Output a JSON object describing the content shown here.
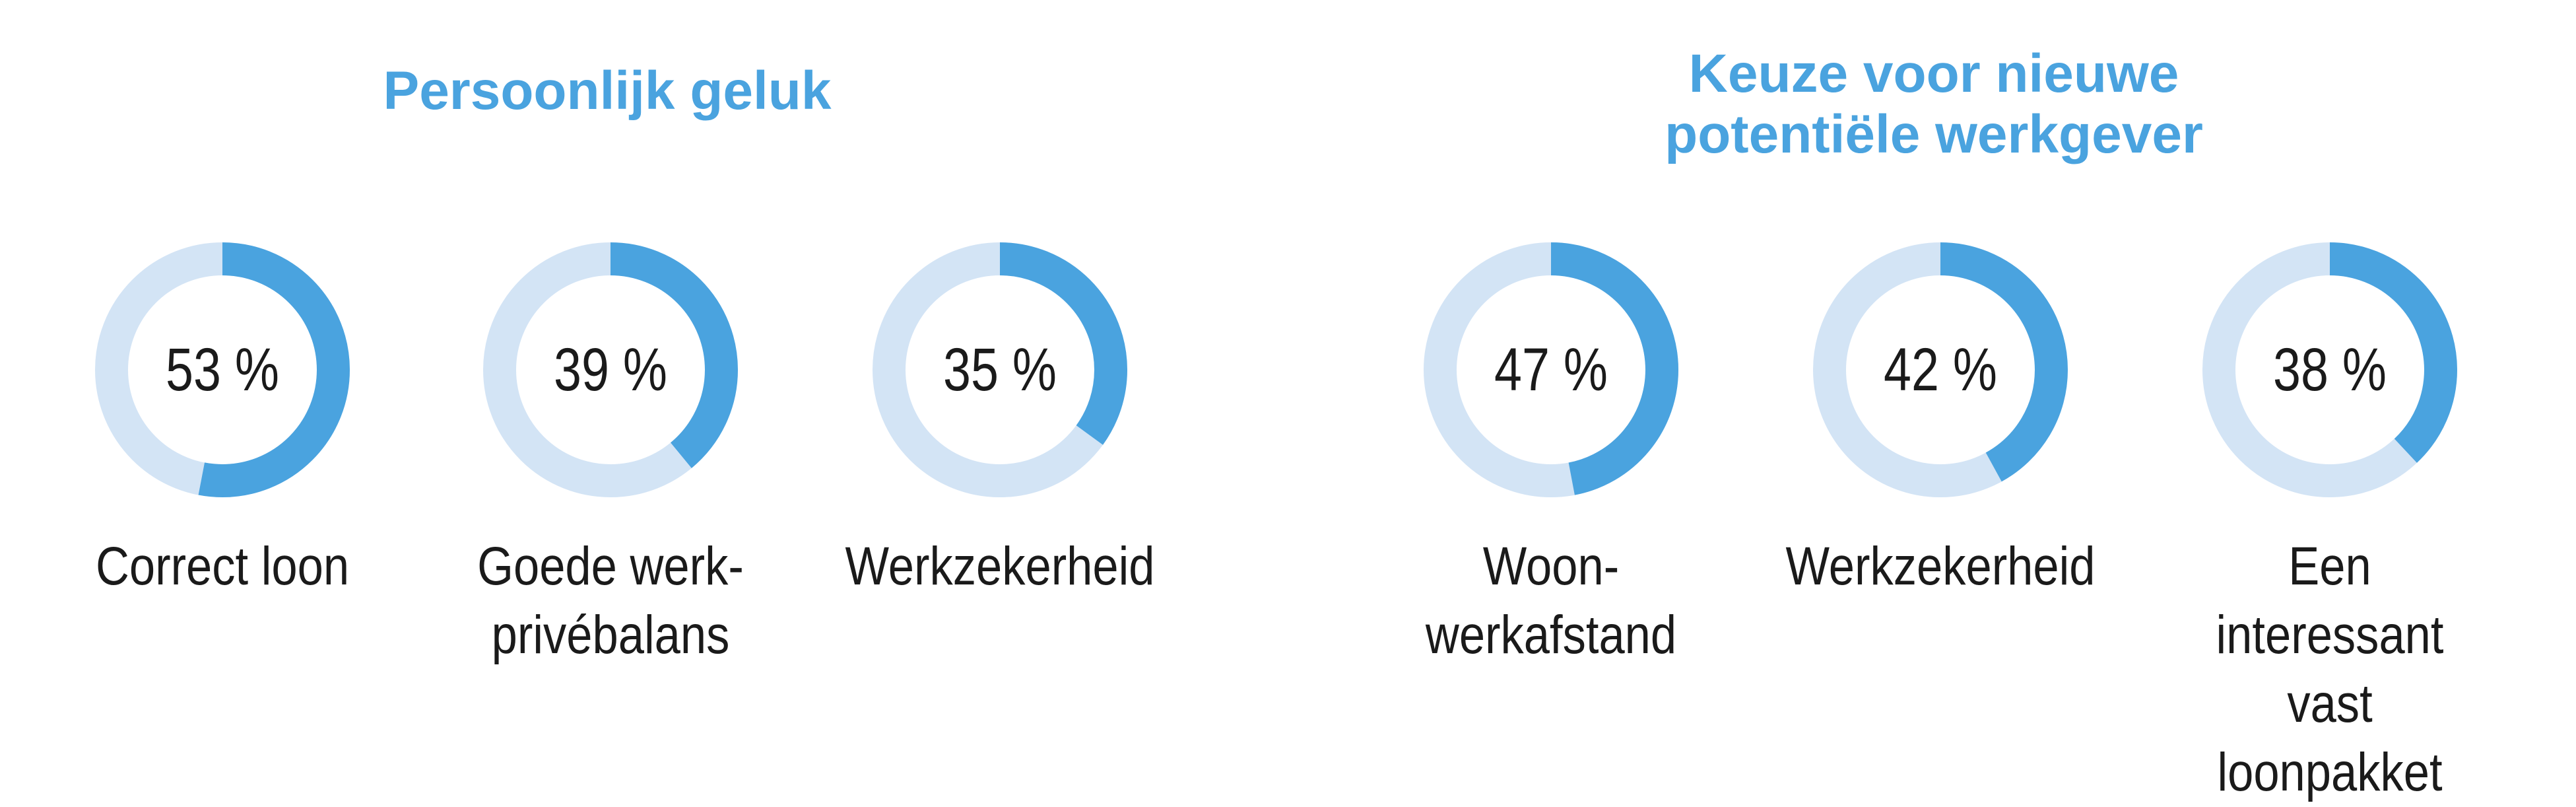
{
  "colors": {
    "accent": "#4aa3df",
    "track": "#d3e4f5",
    "text": "#1a1a1a"
  },
  "chart_data": [
    {
      "type": "donut",
      "title": "Persoonlijk geluk",
      "items": [
        {
          "label_lines": [
            "Correct loon"
          ],
          "value": 53,
          "value_label": "53 %"
        },
        {
          "label_lines": [
            "Goede werk-",
            "privébalans"
          ],
          "value": 39,
          "value_label": "39 %"
        },
        {
          "label_lines": [
            "Werkzekerheid"
          ],
          "value": 35,
          "value_label": "35 %"
        }
      ]
    },
    {
      "type": "donut",
      "title_lines": [
        "Keuze voor nieuwe",
        "potentiële werkgever"
      ],
      "items": [
        {
          "label_lines": [
            "Woon-",
            "werkafstand"
          ],
          "value": 47,
          "value_label": "47 %"
        },
        {
          "label_lines": [
            "Werkzekerheid"
          ],
          "value": 42,
          "value_label": "42 %"
        },
        {
          "label_lines": [
            "Een interessant",
            "vast loonpakket"
          ],
          "value": 38,
          "value_label": "38 %"
        }
      ]
    }
  ]
}
